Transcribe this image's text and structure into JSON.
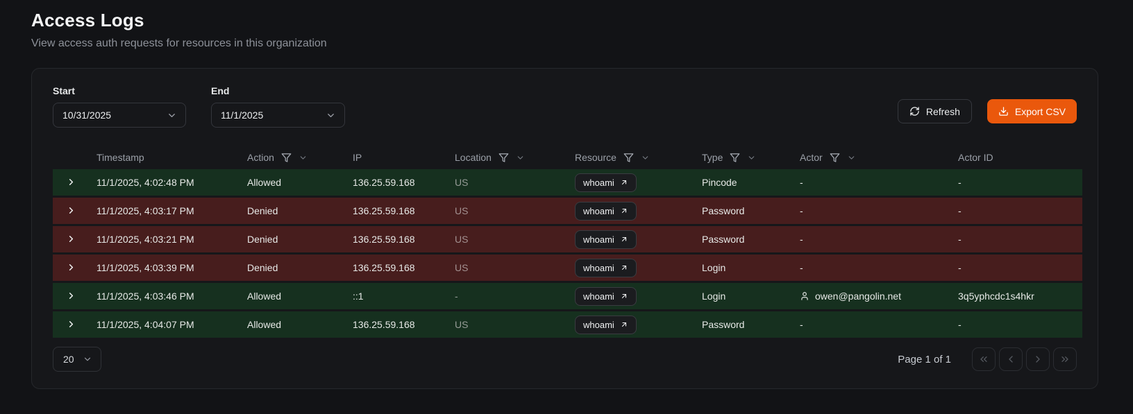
{
  "page": {
    "title": "Access Logs",
    "subtitle": "View access auth requests for resources in this organization"
  },
  "filters": {
    "start_label": "Start",
    "start_value": "10/31/2025",
    "end_label": "End",
    "end_value": "11/1/2025"
  },
  "toolbar": {
    "refresh_label": "Refresh",
    "export_label": "Export CSV"
  },
  "table": {
    "columns": [
      {
        "label": "Timestamp",
        "filterable": false
      },
      {
        "label": "Action",
        "filterable": true
      },
      {
        "label": "IP",
        "filterable": false
      },
      {
        "label": "Location",
        "filterable": true
      },
      {
        "label": "Resource",
        "filterable": true
      },
      {
        "label": "Type",
        "filterable": true
      },
      {
        "label": "Actor",
        "filterable": true
      },
      {
        "label": "Actor ID",
        "filterable": false
      }
    ],
    "rows": [
      {
        "timestamp": "11/1/2025, 4:02:48 PM",
        "action": "Allowed",
        "ip": "136.25.59.168",
        "location": "US",
        "resource": "whoami",
        "type": "Pincode",
        "actor": "-",
        "actor_id": "-",
        "status": "allowed"
      },
      {
        "timestamp": "11/1/2025, 4:03:17 PM",
        "action": "Denied",
        "ip": "136.25.59.168",
        "location": "US",
        "resource": "whoami",
        "type": "Password",
        "actor": "-",
        "actor_id": "-",
        "status": "denied"
      },
      {
        "timestamp": "11/1/2025, 4:03:21 PM",
        "action": "Denied",
        "ip": "136.25.59.168",
        "location": "US",
        "resource": "whoami",
        "type": "Password",
        "actor": "-",
        "actor_id": "-",
        "status": "denied"
      },
      {
        "timestamp": "11/1/2025, 4:03:39 PM",
        "action": "Denied",
        "ip": "136.25.59.168",
        "location": "US",
        "resource": "whoami",
        "type": "Login",
        "actor": "-",
        "actor_id": "-",
        "status": "denied"
      },
      {
        "timestamp": "11/1/2025, 4:03:46 PM",
        "action": "Allowed",
        "ip": "::1",
        "location": "-",
        "resource": "whoami",
        "type": "Login",
        "actor": "owen@pangolin.net",
        "actor_id": "3q5yphcdc1s4hkr",
        "status": "allowed"
      },
      {
        "timestamp": "11/1/2025, 4:04:07 PM",
        "action": "Allowed",
        "ip": "136.25.59.168",
        "location": "US",
        "resource": "whoami",
        "type": "Password",
        "actor": "-",
        "actor_id": "-",
        "status": "allowed"
      }
    ]
  },
  "pagination": {
    "page_size": "20",
    "page_info": "Page 1 of 1"
  },
  "colors": {
    "accent": "#ea580c",
    "row_allowed": "#16301f",
    "row_denied": "#471d1d"
  }
}
